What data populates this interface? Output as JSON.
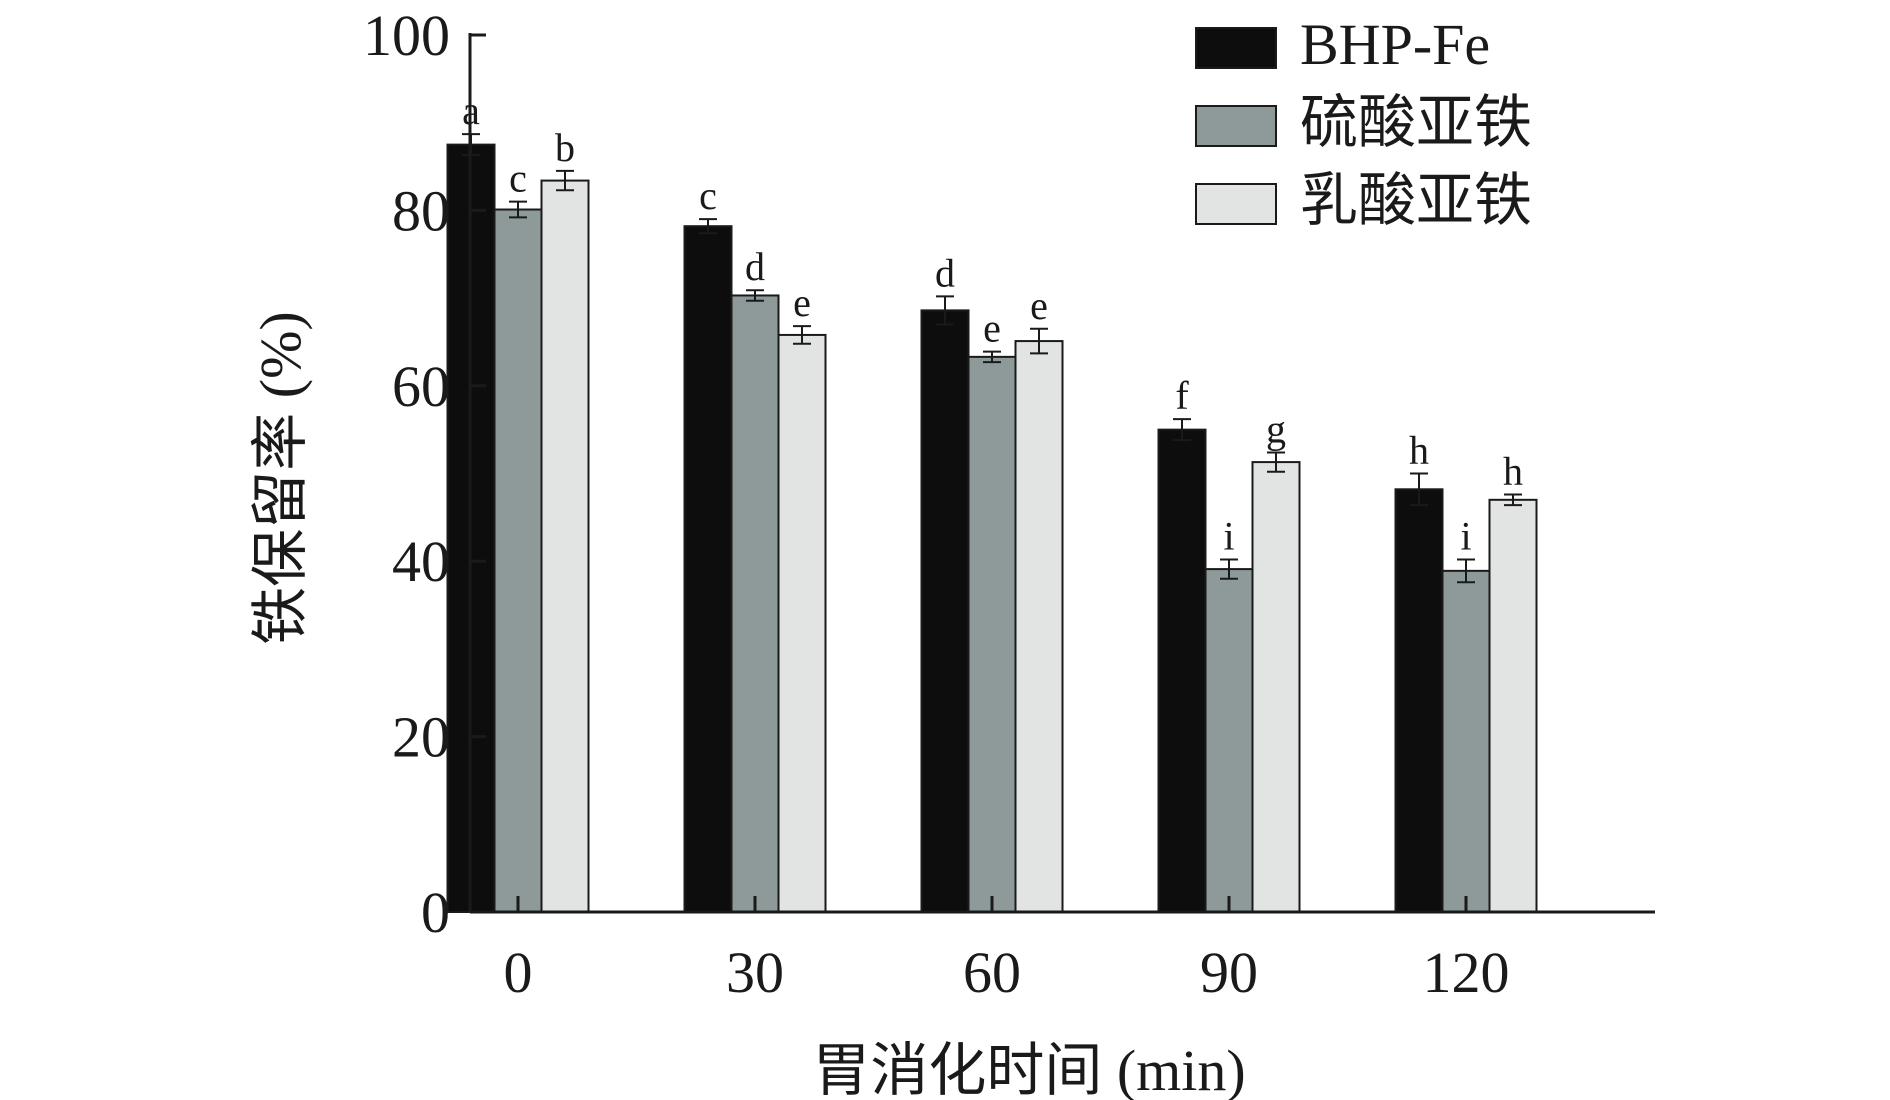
{
  "chart_data": {
    "type": "bar",
    "xlabel": "胃消化时间 (min)",
    "ylabel": "铁保留率 (%)",
    "ylim": [
      0,
      100
    ],
    "yticks": [
      0,
      20,
      40,
      60,
      80,
      100
    ],
    "categories": [
      "0",
      "30",
      "60",
      "90",
      "120"
    ],
    "legend_position": "top-right",
    "series": [
      {
        "name": "BHP-Fe",
        "color": "#0d0d0d",
        "values": [
          87.5,
          78.2,
          68.6,
          55.0,
          48.2
        ],
        "errors": [
          1.2,
          0.8,
          1.6,
          1.2,
          1.8
        ],
        "labels": [
          "a",
          "c",
          "d",
          "f",
          "h"
        ]
      },
      {
        "name": "硫酸亚铁",
        "color": "#8e9a9a",
        "values": [
          80.1,
          70.3,
          63.3,
          39.1,
          38.9
        ],
        "errors": [
          0.9,
          0.6,
          0.6,
          1.1,
          1.3
        ],
        "labels": [
          "c",
          "d",
          "e",
          "i",
          "i"
        ]
      },
      {
        "name": "乳酸亚铁",
        "color": "#e1e4e3",
        "values": [
          83.4,
          65.8,
          65.1,
          51.3,
          47.0
        ],
        "errors": [
          1.1,
          1.0,
          1.4,
          1.1,
          0.6
        ],
        "labels": [
          "b",
          "e",
          "e",
          "g",
          "h"
        ]
      }
    ]
  }
}
